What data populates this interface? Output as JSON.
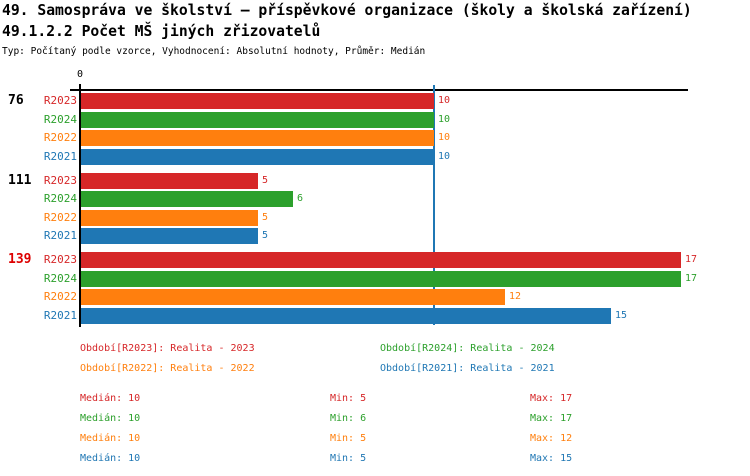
{
  "header": {
    "title_line1": "49. Samospráva ve školství – příspěvkové organizace (školy a školská zařízení)",
    "title_line2": "49.1.2.2 Počet MŠ jiných zřizovatelů",
    "subtitle": "Typ: Počítaný podle vzorce, Vyhodnocení: Absolutní hodnoty, Průměr: Medián"
  },
  "colors": {
    "r2023": "#d62728",
    "r2024": "#2ca02c",
    "r2022": "#ff7f0e",
    "r2021": "#1f77b4",
    "axis": "#000000",
    "median_line": "#1f77b4",
    "highlight_label": "#dd0000"
  },
  "chart_data": {
    "type": "bar",
    "orientation": "horizontal",
    "title": "49.1.2.2 Počet MŠ jiných zřizovatelů",
    "x_zero_label": "0",
    "xlim": [
      0,
      17.2
    ],
    "grid": false,
    "median_line_value": 10,
    "series": [
      "R2023",
      "R2024",
      "R2022",
      "R2021"
    ],
    "series_colors": {
      "R2023": "#d62728",
      "R2024": "#2ca02c",
      "R2022": "#ff7f0e",
      "R2021": "#1f77b4"
    },
    "groups": [
      {
        "label": "76",
        "label_color": "#000000",
        "values": [
          10,
          10,
          10,
          10
        ]
      },
      {
        "label": "111",
        "label_color": "#000000",
        "values": [
          5,
          6,
          5,
          5
        ]
      },
      {
        "label": "139",
        "label_color": "#dd0000",
        "values": [
          17,
          17,
          12,
          15
        ]
      }
    ],
    "stats": [
      {
        "series": "R2023",
        "median": 10,
        "min": 5,
        "max": 17
      },
      {
        "series": "R2024",
        "median": 10,
        "min": 6,
        "max": 17
      },
      {
        "series": "R2022",
        "median": 10,
        "min": 5,
        "max": 12
      },
      {
        "series": "R2021",
        "median": 10,
        "min": 5,
        "max": 15
      }
    ]
  },
  "legend": {
    "items": [
      {
        "text": "Období[R2023]: Realita - 2023",
        "color": "#d62728"
      },
      {
        "text": "Období[R2024]: Realita - 2024",
        "color": "#2ca02c"
      },
      {
        "text": "Období[R2022]: Realita - 2022",
        "color": "#ff7f0e"
      },
      {
        "text": "Období[R2021]: Realita - 2021",
        "color": "#1f77b4"
      }
    ]
  },
  "stats_panel": {
    "rows": [
      {
        "color": "#d62728",
        "median": "Medián: 10",
        "min": "Min: 5",
        "max": "Max: 17"
      },
      {
        "color": "#2ca02c",
        "median": "Medián: 10",
        "min": "Min: 6",
        "max": "Max: 17"
      },
      {
        "color": "#ff7f0e",
        "median": "Medián: 10",
        "min": "Min: 5",
        "max": "Max: 12"
      },
      {
        "color": "#1f77b4",
        "median": "Medián: 10",
        "min": "Min: 5",
        "max": "Max: 15"
      }
    ]
  }
}
